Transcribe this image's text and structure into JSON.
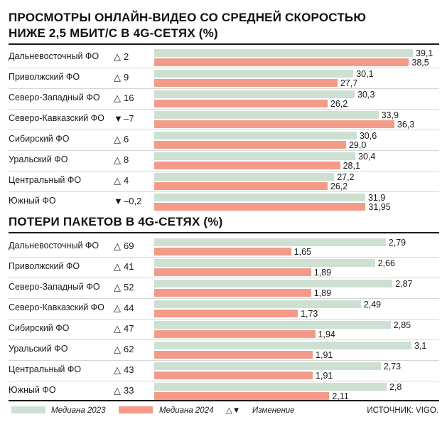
{
  "chart_data": [
    {
      "type": "bar",
      "title_lines": [
        "ПРОСМОТРЫ ОНЛАЙН-ВИДЕО СО СРЕДНЕЙ СКОРОСТЬЮ",
        "НИЖЕ 2,5 МБИТ/С В 4G-СЕТЯХ (%)"
      ],
      "categories": [
        "Дальневосточный ФО",
        "Приволжский ФО",
        "Северо-Западный ФО",
        "Северо-Кавказский ФО",
        "Сибирский ФО",
        "Уральский ФО",
        "Центральный ФО",
        "Южный ФО"
      ],
      "changes": [
        {
          "dir": "up",
          "text": "2"
        },
        {
          "dir": "up",
          "text": "9"
        },
        {
          "dir": "up",
          "text": "16"
        },
        {
          "dir": "down",
          "text": "–7"
        },
        {
          "dir": "up",
          "text": "6"
        },
        {
          "dir": "up",
          "text": "8"
        },
        {
          "dir": "up",
          "text": "4"
        },
        {
          "dir": "down",
          "text": "–0,2"
        }
      ],
      "series": [
        {
          "name": "Медиана 2023",
          "values": [
            39.1,
            30.1,
            30.3,
            33.9,
            30.6,
            30.4,
            27.2,
            31.9
          ],
          "labels": [
            "39,1",
            "30,1",
            "30,3",
            "33,9",
            "30,6",
            "30,4",
            "27,2",
            "31,9"
          ]
        },
        {
          "name": "Медиана 2024",
          "values": [
            38.5,
            27.7,
            26.2,
            36.3,
            29.0,
            28.1,
            26.2,
            31.95
          ],
          "labels": [
            "38,5",
            "27,7",
            "26,2",
            "36,3",
            "29,0",
            "28,1",
            "26,2",
            "31,95"
          ]
        }
      ],
      "xlim": [
        0,
        39.1
      ]
    },
    {
      "type": "bar",
      "title": "ПОТЕРИ ПАКЕТОВ В 4G-СЕТЯХ (%)",
      "categories": [
        "Дальневосточный ФО",
        "Приволжский ФО",
        "Северо-Западный ФО",
        "Северо-Кавказский ФО",
        "Сибирский ФО",
        "Уральский ФО",
        "Центральный ФО",
        "Южный ФО"
      ],
      "changes": [
        {
          "dir": "up",
          "text": "69"
        },
        {
          "dir": "up",
          "text": "41"
        },
        {
          "dir": "up",
          "text": "52"
        },
        {
          "dir": "up",
          "text": "44"
        },
        {
          "dir": "up",
          "text": "47"
        },
        {
          "dir": "up",
          "text": "62"
        },
        {
          "dir": "up",
          "text": "43"
        },
        {
          "dir": "up",
          "text": "33"
        }
      ],
      "series": [
        {
          "name": "Медиана 2023",
          "values": [
            2.79,
            2.66,
            2.87,
            2.49,
            2.85,
            3.1,
            2.73,
            2.8
          ],
          "labels": [
            "2,79",
            "2,66",
            "2,87",
            "2,49",
            "2,85",
            "3,1",
            "2,73",
            "2,8"
          ]
        },
        {
          "name": "Медиана 2024",
          "values": [
            1.65,
            1.89,
            1.89,
            1.73,
            1.94,
            1.91,
            1.91,
            2.11
          ],
          "labels": [
            "1,65",
            "1,89",
            "1,89",
            "1,73",
            "1,94",
            "1,91",
            "1,91",
            "2,11"
          ]
        }
      ],
      "xlim": [
        0,
        3.1
      ]
    }
  ],
  "legend": {
    "label_2023": "Медиана 2023",
    "label_2024": "Медиана 2024",
    "change_symbols": "△▼",
    "change_label": "Изменение"
  },
  "source": "ИСТОЧНИК: VIGO.",
  "colors": {
    "y2023": "#cde0d2",
    "y2024": "#f39b88",
    "text": "#1a1a1a"
  }
}
